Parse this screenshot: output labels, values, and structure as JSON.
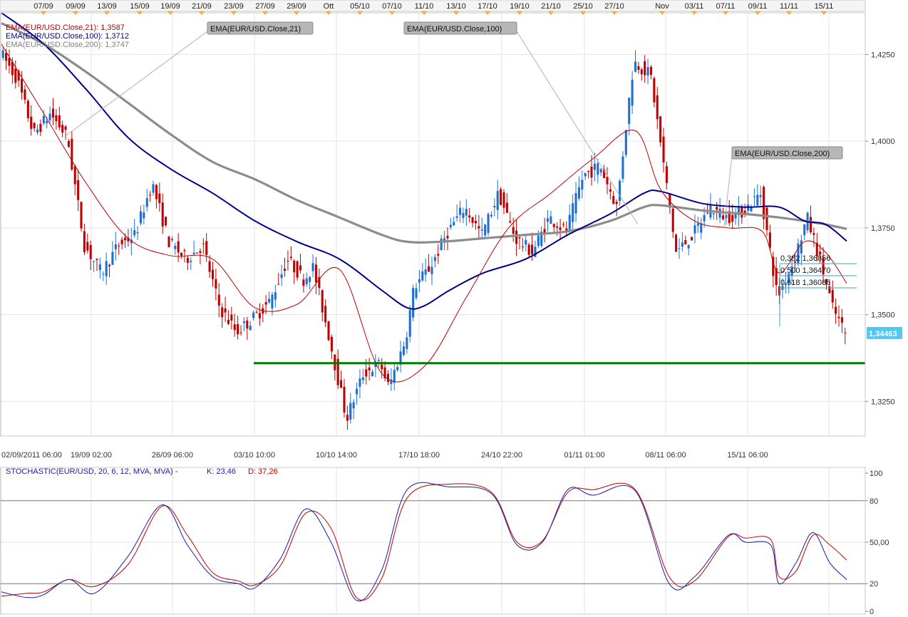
{
  "top_dates": [
    "07/09",
    "09/09",
    "13/09",
    "15/09",
    "19/09",
    "21/09",
    "23/09",
    "27/09",
    "29/09",
    "Ott",
    "05/10",
    "07/10",
    "11/10",
    "13/10",
    "17/10",
    "19/10",
    "21/10",
    "25/10",
    "27/10",
    "Nov",
    "03/11",
    "07/11",
    "09/11",
    "11/11",
    "15/11"
  ],
  "bottom_dates": [
    "02/09/2011 06:00",
    "19/09 02:00",
    "26/09 06:00",
    "03/10 10:00",
    "10/10 14:00",
    "17/10 18:00",
    "24/10 22:00",
    "01/11 01:00",
    "08/11 06:00",
    "15/11 06:00"
  ],
  "legend": [
    {
      "text": "EMA(EUR/USD.Close,21): 1,3587",
      "color": "#c00000"
    },
    {
      "text": "EMA(EUR/USD.Close,100): 1,3712",
      "color": "#00008b"
    },
    {
      "text": "EMA(EUR/USD.Close,200): 1,3747",
      "color": "#808080"
    }
  ],
  "callouts": {
    "ema21": "EMA(EUR/USD.Close,21)",
    "ema100": "EMA(EUR/USD.Close,100)",
    "ema200": "EMA(EUR/USD.Close,200)"
  },
  "fib_labels": [
    "0,382 1,36856",
    "0,500 1,36470",
    "0,618 1,36085"
  ],
  "price_axis": [
    "1,4250",
    "1,4000",
    "1,3750",
    "1,3500",
    "1,3250"
  ],
  "current_price": "1,34463",
  "stoch_title": "STOCHASTIC(EUR/USD, 20, 6, 12, MVA, MVA) -",
  "stoch_k": "K: 23,46",
  "stoch_d": "D: 37,26",
  "stoch_axis": [
    "100",
    "80",
    "50,00",
    "20",
    "0"
  ],
  "colors": {
    "bull": "#1f6fd1",
    "bear": "#c00000",
    "ema21": "#c00000",
    "ema100": "#00008b",
    "ema200": "#8c8c8c",
    "support": "#007a00",
    "k": "#1a1aa8",
    "d": "#c00000"
  },
  "chart_data": [
    {
      "type": "line",
      "title": "EUR/USD",
      "ylim": [
        1.315,
        1.437
      ],
      "series": [
        {
          "name": "EMA(EUR/USD.Close,21)",
          "last": 1.3587,
          "points": [
            [
              0,
              1.428
            ],
            [
              0.05,
              1.408
            ],
            [
              0.1,
              1.388
            ],
            [
              0.15,
              1.372
            ],
            [
              0.2,
              1.367
            ],
            [
              0.25,
              1.366
            ],
            [
              0.3,
              1.352
            ],
            [
              0.35,
              1.353
            ],
            [
              0.4,
              1.363
            ],
            [
              0.45,
              1.333
            ],
            [
              0.5,
              1.335
            ],
            [
              0.55,
              1.355
            ],
            [
              0.6,
              1.375
            ],
            [
              0.65,
              1.385
            ],
            [
              0.7,
              1.395
            ],
            [
              0.75,
              1.403
            ],
            [
              0.78,
              1.386
            ],
            [
              0.82,
              1.377
            ],
            [
              0.86,
              1.375
            ],
            [
              0.9,
              1.374
            ],
            [
              0.92,
              1.362
            ],
            [
              0.95,
              1.371
            ],
            [
              0.975,
              1.368
            ],
            [
              1.0,
              1.359
            ]
          ]
        },
        {
          "name": "EMA(EUR/USD.Close,100)",
          "last": 1.3712,
          "points": [
            [
              0,
              1.437
            ],
            [
              0.05,
              1.428
            ],
            [
              0.1,
              1.415
            ],
            [
              0.15,
              1.401
            ],
            [
              0.2,
              1.392
            ],
            [
              0.25,
              1.385
            ],
            [
              0.3,
              1.377
            ],
            [
              0.35,
              1.371
            ],
            [
              0.4,
              1.366
            ],
            [
              0.45,
              1.357
            ],
            [
              0.48,
              1.352
            ],
            [
              0.5,
              1.3525
            ],
            [
              0.53,
              1.357
            ],
            [
              0.57,
              1.362
            ],
            [
              0.62,
              1.366
            ],
            [
              0.67,
              1.373
            ],
            [
              0.72,
              1.379
            ],
            [
              0.76,
              1.385
            ],
            [
              0.78,
              1.3855
            ],
            [
              0.83,
              1.382
            ],
            [
              0.88,
              1.381
            ],
            [
              0.92,
              1.381
            ],
            [
              0.95,
              1.377
            ],
            [
              0.975,
              1.376
            ],
            [
              1.0,
              1.3712
            ]
          ]
        },
        {
          "name": "EMA(EUR/USD.Close,200)",
          "last": 1.3747,
          "points": [
            [
              0,
              1.434
            ],
            [
              0.05,
              1.428
            ],
            [
              0.1,
              1.42
            ],
            [
              0.15,
              1.411
            ],
            [
              0.2,
              1.402
            ],
            [
              0.25,
              1.394
            ],
            [
              0.3,
              1.389
            ],
            [
              0.35,
              1.383
            ],
            [
              0.4,
              1.378
            ],
            [
              0.45,
              1.373
            ],
            [
              0.48,
              1.371
            ],
            [
              0.52,
              1.371
            ],
            [
              0.57,
              1.372
            ],
            [
              0.62,
              1.373
            ],
            [
              0.67,
              1.374
            ],
            [
              0.72,
              1.377
            ],
            [
              0.76,
              1.381
            ],
            [
              0.78,
              1.3815
            ],
            [
              0.83,
              1.38
            ],
            [
              0.88,
              1.379
            ],
            [
              0.92,
              1.378
            ],
            [
              0.95,
              1.377
            ],
            [
              0.975,
              1.376
            ],
            [
              1.0,
              1.3747
            ]
          ]
        },
        {
          "name": "support",
          "points": [
            [
              0.3,
              1.336
            ],
            [
              1.0,
              1.336
            ]
          ]
        }
      ],
      "price_path": [
        [
          0,
          1.426
        ],
        [
          0.02,
          1.418
        ],
        [
          0.04,
          1.402
        ],
        [
          0.06,
          1.408
        ],
        [
          0.08,
          1.401
        ],
        [
          0.1,
          1.37
        ],
        [
          0.12,
          1.362
        ],
        [
          0.14,
          1.37
        ],
        [
          0.16,
          1.373
        ],
        [
          0.18,
          1.388
        ],
        [
          0.2,
          1.371
        ],
        [
          0.22,
          1.366
        ],
        [
          0.24,
          1.37
        ],
        [
          0.26,
          1.352
        ],
        [
          0.28,
          1.345
        ],
        [
          0.3,
          1.349
        ],
        [
          0.32,
          1.354
        ],
        [
          0.34,
          1.366
        ],
        [
          0.36,
          1.36
        ],
        [
          0.37,
          1.364
        ],
        [
          0.39,
          1.343
        ],
        [
          0.41,
          1.32
        ],
        [
          0.43,
          1.333
        ],
        [
          0.45,
          1.336
        ],
        [
          0.46,
          1.329
        ],
        [
          0.48,
          1.343
        ],
        [
          0.49,
          1.358
        ],
        [
          0.51,
          1.364
        ],
        [
          0.53,
          1.374
        ],
        [
          0.55,
          1.381
        ],
        [
          0.57,
          1.373
        ],
        [
          0.59,
          1.385
        ],
        [
          0.61,
          1.372
        ],
        [
          0.63,
          1.368
        ],
        [
          0.65,
          1.378
        ],
        [
          0.67,
          1.374
        ],
        [
          0.69,
          1.39
        ],
        [
          0.71,
          1.393
        ],
        [
          0.73,
          1.381
        ],
        [
          0.74,
          1.403
        ],
        [
          0.75,
          1.423
        ],
        [
          0.77,
          1.419
        ],
        [
          0.79,
          1.385
        ],
        [
          0.8,
          1.368
        ],
        [
          0.82,
          1.373
        ],
        [
          0.84,
          1.381
        ],
        [
          0.86,
          1.378
        ],
        [
          0.88,
          1.38
        ],
        [
          0.9,
          1.385
        ],
        [
          0.92,
          1.355
        ],
        [
          0.94,
          1.366
        ],
        [
          0.955,
          1.378
        ],
        [
          0.97,
          1.366
        ],
        [
          0.985,
          1.352
        ],
        [
          1.0,
          1.3446
        ]
      ]
    },
    {
      "type": "line",
      "title": "STOCHASTIC(EUR/USD, 20, 6, 12, MVA, MVA)",
      "ylim": [
        0,
        100
      ],
      "levels": [
        20,
        50,
        80
      ],
      "series": [
        {
          "name": "K",
          "last": 23.46,
          "points": [
            [
              0,
              14
            ],
            [
              0.03,
              10
            ],
            [
              0.05,
              12
            ],
            [
              0.08,
              23
            ],
            [
              0.11,
              13
            ],
            [
              0.15,
              40
            ],
            [
              0.19,
              77
            ],
            [
              0.22,
              48
            ],
            [
              0.25,
              25
            ],
            [
              0.28,
              20
            ],
            [
              0.3,
              17
            ],
            [
              0.33,
              38
            ],
            [
              0.36,
              74
            ],
            [
              0.39,
              50
            ],
            [
              0.42,
              8
            ],
            [
              0.45,
              30
            ],
            [
              0.48,
              88
            ],
            [
              0.53,
              90
            ],
            [
              0.58,
              85
            ],
            [
              0.61,
              48
            ],
            [
              0.64,
              50
            ],
            [
              0.67,
              88
            ],
            [
              0.7,
              84
            ],
            [
              0.75,
              87
            ],
            [
              0.79,
              20
            ],
            [
              0.82,
              25
            ],
            [
              0.86,
              55
            ],
            [
              0.88,
              50
            ],
            [
              0.91,
              48
            ],
            [
              0.92,
              20
            ],
            [
              0.94,
              35
            ],
            [
              0.96,
              57
            ],
            [
              0.98,
              35
            ],
            [
              1.0,
              23
            ]
          ]
        },
        {
          "name": "D",
          "last": 37.26,
          "points": [
            [
              0,
              11
            ],
            [
              0.03,
              13
            ],
            [
              0.05,
              14
            ],
            [
              0.08,
              23
            ],
            [
              0.11,
              18
            ],
            [
              0.15,
              34
            ],
            [
              0.19,
              76
            ],
            [
              0.22,
              55
            ],
            [
              0.25,
              28
            ],
            [
              0.28,
              22
            ],
            [
              0.3,
              19
            ],
            [
              0.33,
              33
            ],
            [
              0.36,
              71
            ],
            [
              0.39,
              60
            ],
            [
              0.42,
              10
            ],
            [
              0.45,
              24
            ],
            [
              0.48,
              82
            ],
            [
              0.53,
              92
            ],
            [
              0.58,
              86
            ],
            [
              0.61,
              50
            ],
            [
              0.64,
              51
            ],
            [
              0.67,
              86
            ],
            [
              0.7,
              88
            ],
            [
              0.75,
              88
            ],
            [
              0.79,
              25
            ],
            [
              0.82,
              22
            ],
            [
              0.86,
              54
            ],
            [
              0.88,
              53
            ],
            [
              0.91,
              52
            ],
            [
              0.92,
              25
            ],
            [
              0.94,
              29
            ],
            [
              0.96,
              55
            ],
            [
              0.98,
              48
            ],
            [
              1.0,
              37
            ]
          ]
        }
      ]
    }
  ]
}
